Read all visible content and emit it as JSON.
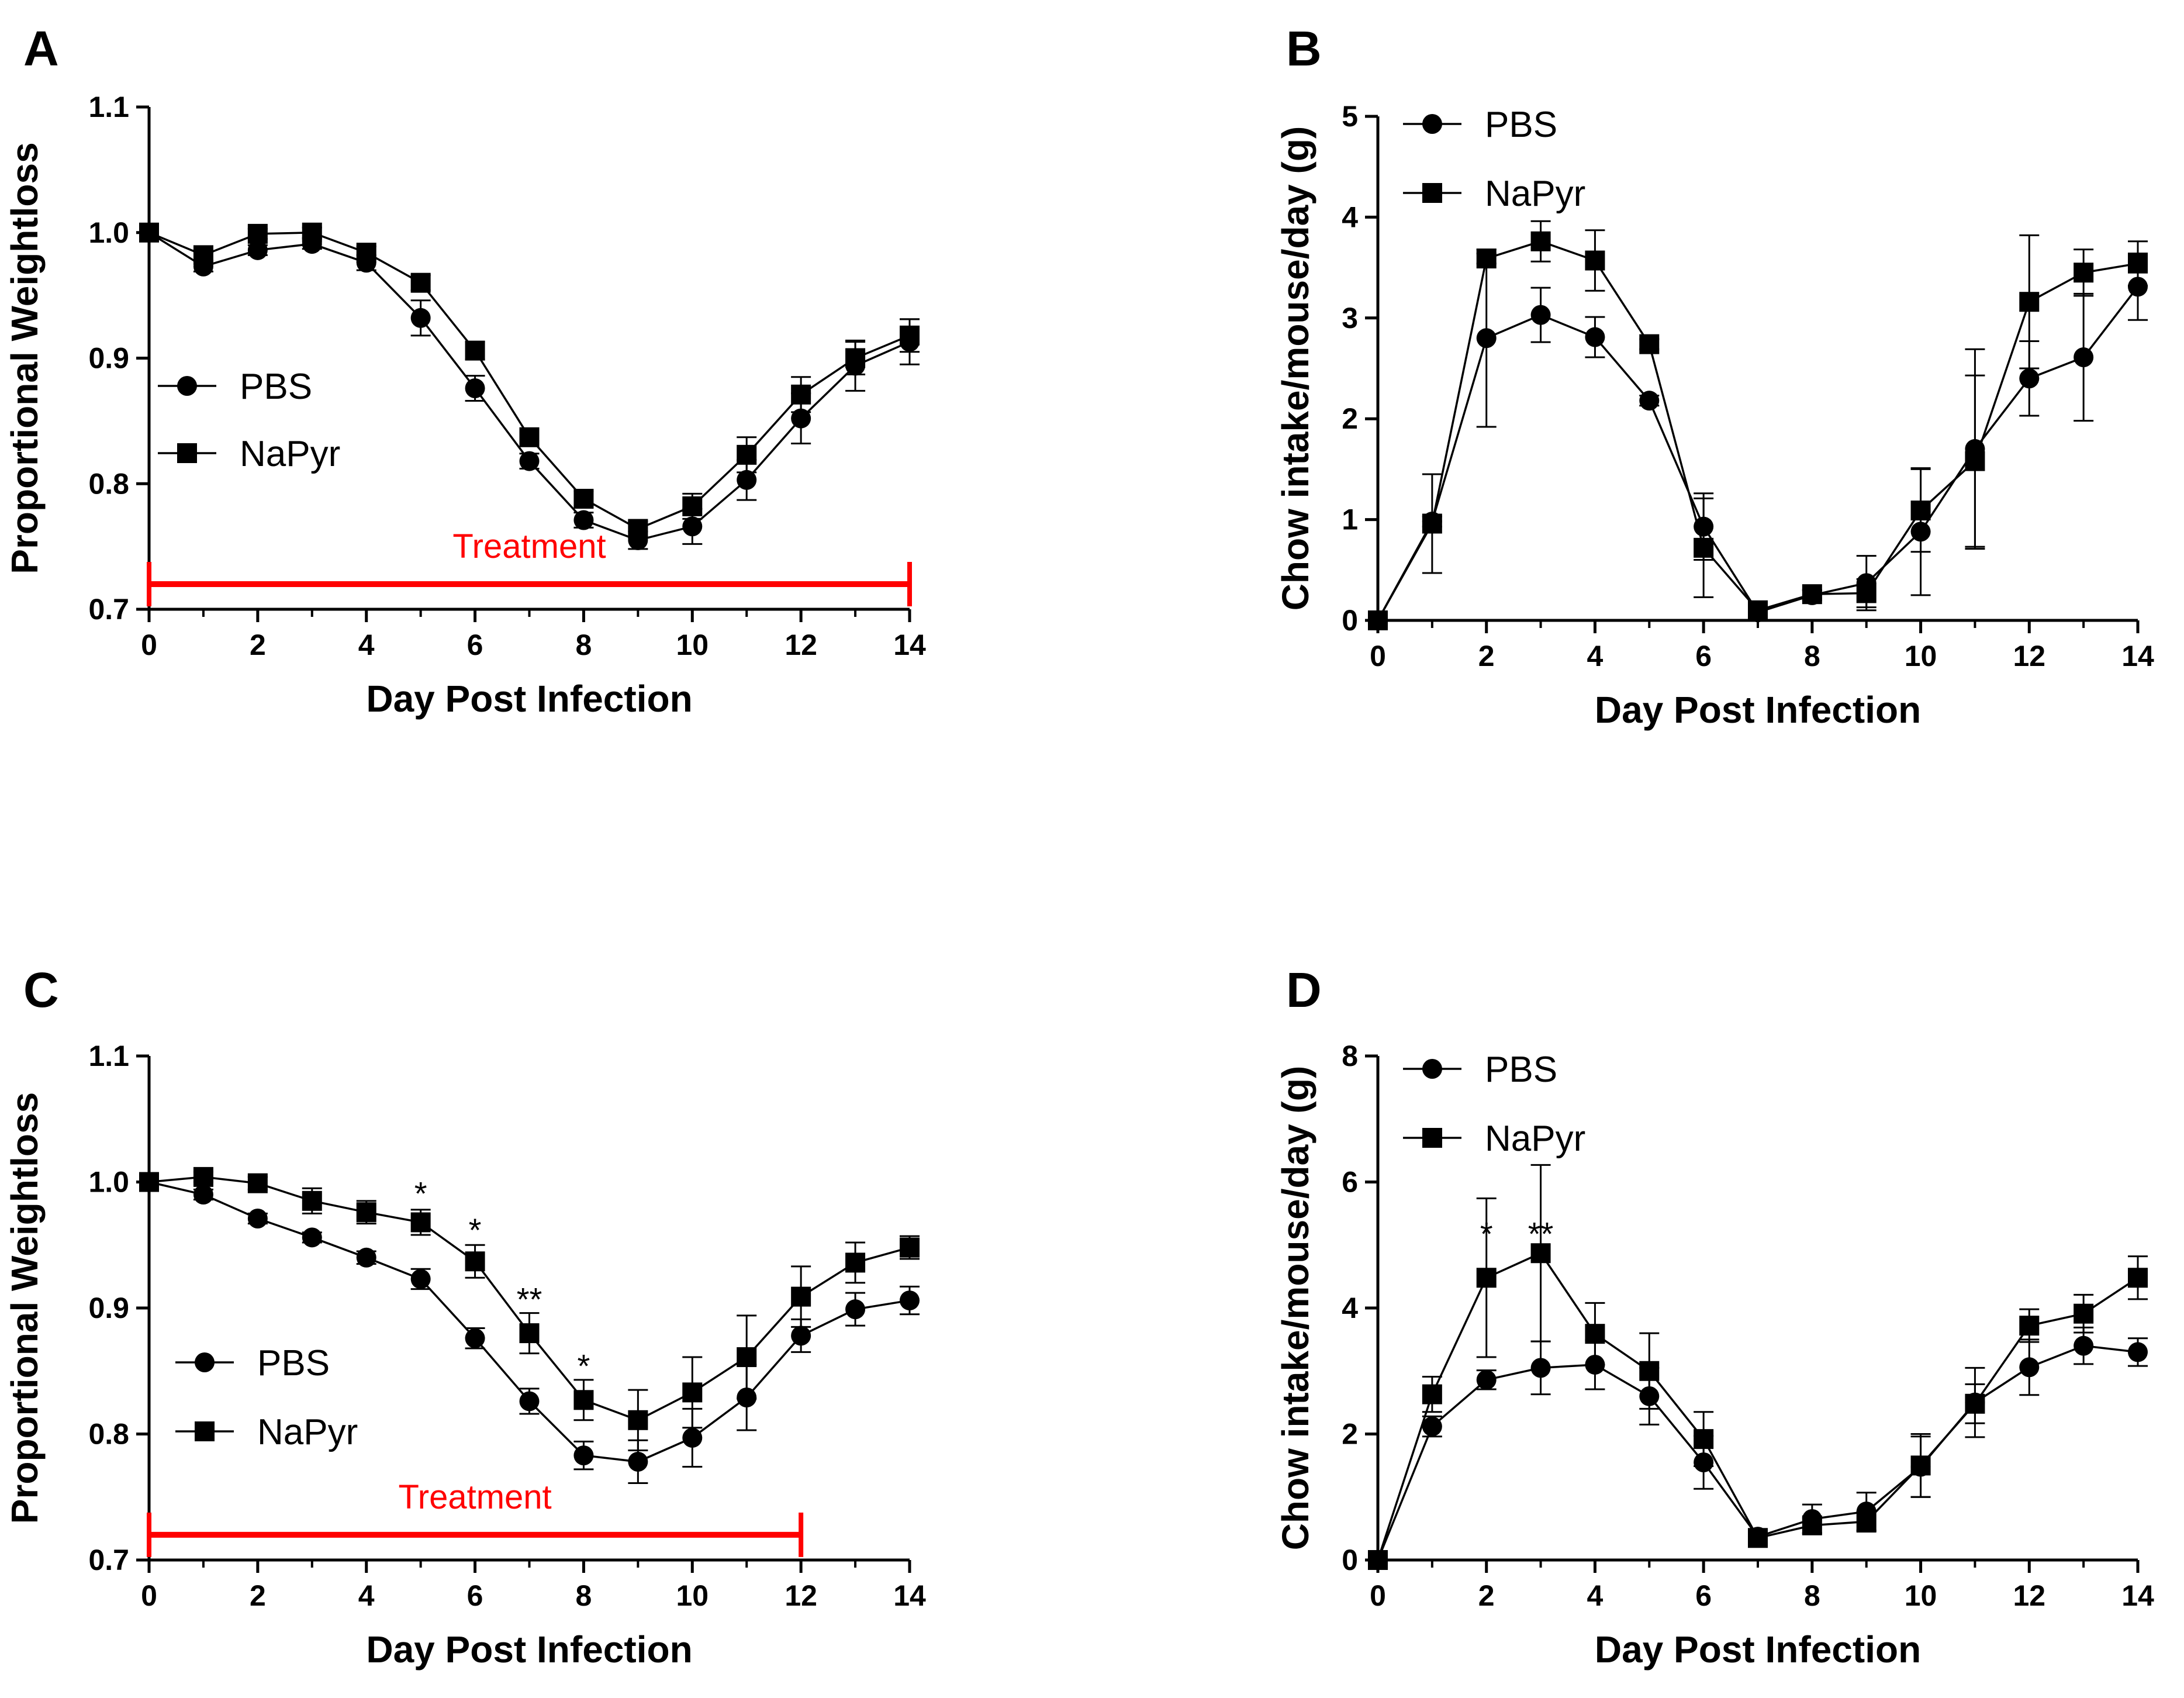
{
  "figure": {
    "series_colors": {
      "line": "#000000",
      "treatment": "#ff0000"
    },
    "marker_shapes": {
      "PBS": "circle",
      "NaPyr": "square"
    }
  },
  "chart_data": [
    {
      "panel": "A",
      "type": "line",
      "xlabel": "Day Post Infection",
      "ylabel": "Proportional Weightloss",
      "xlim": [
        0,
        14
      ],
      "ylim": [
        0.7,
        1.1
      ],
      "xticks": [
        "0",
        "2",
        "4",
        "6",
        "8",
        "10",
        "12",
        "14"
      ],
      "yticks": [
        "0.7",
        "0.8",
        "0.9",
        "1.0",
        "1.1"
      ],
      "x": [
        0,
        1,
        2,
        3,
        4,
        5,
        6,
        7,
        8,
        9,
        10,
        11,
        12,
        13,
        14
      ],
      "series": [
        {
          "name": "PBS",
          "marker": "circle",
          "values": [
            1.0,
            0.973,
            0.986,
            0.991,
            0.976,
            0.932,
            0.876,
            0.818,
            0.771,
            0.755,
            0.766,
            0.803,
            0.852,
            0.894,
            0.913
          ],
          "errors": [
            0,
            0.004,
            0.004,
            0.004,
            0.006,
            0.014,
            0.01,
            0.006,
            0.006,
            0.007,
            0.014,
            0.016,
            0.02,
            0.02,
            0.018
          ]
        },
        {
          "name": "NaPyr",
          "marker": "square",
          "values": [
            1.0,
            0.982,
            0.999,
            1.0,
            0.984,
            0.96,
            0.906,
            0.837,
            0.788,
            0.764,
            0.782,
            0.823,
            0.871,
            0.9,
            0.918
          ],
          "errors": [
            0,
            0.004,
            0.004,
            0.004,
            0.005,
            0.006,
            0.007,
            0.006,
            0.006,
            0.006,
            0.01,
            0.014,
            0.014,
            0.013,
            0.013
          ]
        }
      ],
      "legend": [
        "PBS",
        "NaPyr"
      ],
      "legend_position": "middle-left",
      "treatment": {
        "label": "Treatment",
        "start": 0,
        "end": 14,
        "y": 0.72
      },
      "significance": []
    },
    {
      "panel": "B",
      "type": "line",
      "xlabel": "Day Post Infection",
      "ylabel": "Chow intake/mouse/day (g)",
      "xlim": [
        0,
        14
      ],
      "ylim": [
        0,
        5
      ],
      "xticks": [
        "0",
        "2",
        "4",
        "6",
        "8",
        "10",
        "12",
        "14"
      ],
      "yticks": [
        "0",
        "1",
        "2",
        "3",
        "4",
        "5"
      ],
      "x": [
        0,
        1,
        2,
        3,
        4,
        5,
        6,
        7,
        8,
        9,
        10,
        11,
        12,
        13,
        14
      ],
      "series": [
        {
          "name": "PBS",
          "marker": "circle",
          "values": [
            0,
            0.98,
            2.8,
            3.03,
            2.81,
            2.18,
            0.93,
            0.08,
            0.25,
            0.37,
            0.88,
            1.7,
            2.4,
            2.61,
            3.31
          ],
          "errors": [
            0,
            0.05,
            0.88,
            0.27,
            0.2,
            0.05,
            0.33,
            0.05,
            0.05,
            0.27,
            0.63,
            0.99,
            0.37,
            0.63,
            0.33
          ]
        },
        {
          "name": "NaPyr",
          "marker": "square",
          "values": [
            0,
            0.96,
            3.59,
            3.76,
            3.57,
            2.74,
            0.72,
            0.1,
            0.26,
            0.27,
            1.09,
            1.58,
            3.16,
            3.45,
            3.54
          ],
          "errors": [
            0,
            0.49,
            0.05,
            0.2,
            0.3,
            0.05,
            0.49,
            0.05,
            0.04,
            0.14,
            0.41,
            0.85,
            0.66,
            0.23,
            0.22
          ]
        }
      ],
      "legend": [
        "PBS",
        "NaPyr"
      ],
      "legend_position": "top-left",
      "treatment": null,
      "significance": []
    },
    {
      "panel": "C",
      "type": "line",
      "xlabel": "Day Post Infection",
      "ylabel": "Proportional Weightloss",
      "xlim": [
        0,
        14
      ],
      "ylim": [
        0.7,
        1.1
      ],
      "xticks": [
        "0",
        "2",
        "4",
        "6",
        "8",
        "10",
        "12",
        "14"
      ],
      "yticks": [
        "0.7",
        "0.8",
        "0.9",
        "1.0",
        "1.1"
      ],
      "x": [
        0,
        1,
        2,
        3,
        4,
        5,
        6,
        7,
        8,
        9,
        10,
        11,
        12,
        13,
        14
      ],
      "series": [
        {
          "name": "PBS",
          "marker": "circle",
          "values": [
            1.0,
            0.99,
            0.971,
            0.956,
            0.94,
            0.923,
            0.876,
            0.826,
            0.783,
            0.778,
            0.797,
            0.829,
            0.878,
            0.899,
            0.906
          ],
          "errors": [
            0,
            0.004,
            0.004,
            0.004,
            0.005,
            0.008,
            0.008,
            0.01,
            0.011,
            0.017,
            0.023,
            0.026,
            0.013,
            0.013,
            0.011
          ]
        },
        {
          "name": "NaPyr",
          "marker": "square",
          "values": [
            1.0,
            1.004,
            0.999,
            0.985,
            0.976,
            0.968,
            0.937,
            0.88,
            0.827,
            0.811,
            0.833,
            0.861,
            0.909,
            0.936,
            0.948
          ],
          "errors": [
            0,
            0.004,
            0.005,
            0.01,
            0.009,
            0.01,
            0.013,
            0.016,
            0.016,
            0.024,
            0.028,
            0.033,
            0.024,
            0.016,
            0.009
          ]
        }
      ],
      "legend": [
        "PBS",
        "NaPyr"
      ],
      "legend_position": "middle-left",
      "treatment": {
        "label": "Treatment",
        "start": 0,
        "end": 12,
        "y": 0.72
      },
      "significance": [
        {
          "x": 5,
          "y": 0.982,
          "label": "*"
        },
        {
          "x": 6,
          "y": 0.953,
          "label": "*"
        },
        {
          "x": 7,
          "y": 0.898,
          "label": "**"
        },
        {
          "x": 8,
          "y": 0.845,
          "label": "*"
        }
      ]
    },
    {
      "panel": "D",
      "type": "line",
      "xlabel": "Day Post Infection",
      "ylabel": "Chow intake/mouse/day (g)",
      "xlim": [
        0,
        14
      ],
      "ylim": [
        0,
        8
      ],
      "xticks": [
        "0",
        "2",
        "4",
        "6",
        "8",
        "10",
        "12",
        "14"
      ],
      "yticks": [
        "0",
        "2",
        "4",
        "6",
        "8"
      ],
      "x": [
        0,
        1,
        2,
        3,
        4,
        5,
        6,
        7,
        8,
        9,
        10,
        11,
        12,
        13,
        14
      ],
      "series": [
        {
          "name": "PBS",
          "marker": "circle",
          "values": [
            0,
            2.12,
            2.86,
            3.05,
            3.1,
            2.6,
            1.55,
            0.37,
            0.65,
            0.77,
            1.48,
            2.5,
            3.06,
            3.4,
            3.3
          ],
          "errors": [
            0,
            0.16,
            0.15,
            0.42,
            0.39,
            0.45,
            0.42,
            0.12,
            0.23,
            0.3,
            0.48,
            0.55,
            0.44,
            0.29,
            0.22
          ]
        },
        {
          "name": "NaPyr",
          "marker": "square",
          "values": [
            0,
            2.63,
            4.48,
            4.87,
            3.59,
            3.0,
            1.92,
            0.35,
            0.55,
            0.61,
            1.5,
            2.48,
            3.72,
            3.91,
            4.48
          ],
          "errors": [
            0,
            0.28,
            1.26,
            1.4,
            0.49,
            0.6,
            0.43,
            0.1,
            0.12,
            0.16,
            0.5,
            0.31,
            0.26,
            0.3,
            0.34
          ]
        }
      ],
      "legend": [
        "PBS",
        "NaPyr"
      ],
      "legend_position": "top-left",
      "treatment": null,
      "significance": [
        {
          "x": 2,
          "y": 5.0,
          "label": "*"
        },
        {
          "x": 3,
          "y": 5.0,
          "label": "**"
        }
      ]
    }
  ]
}
